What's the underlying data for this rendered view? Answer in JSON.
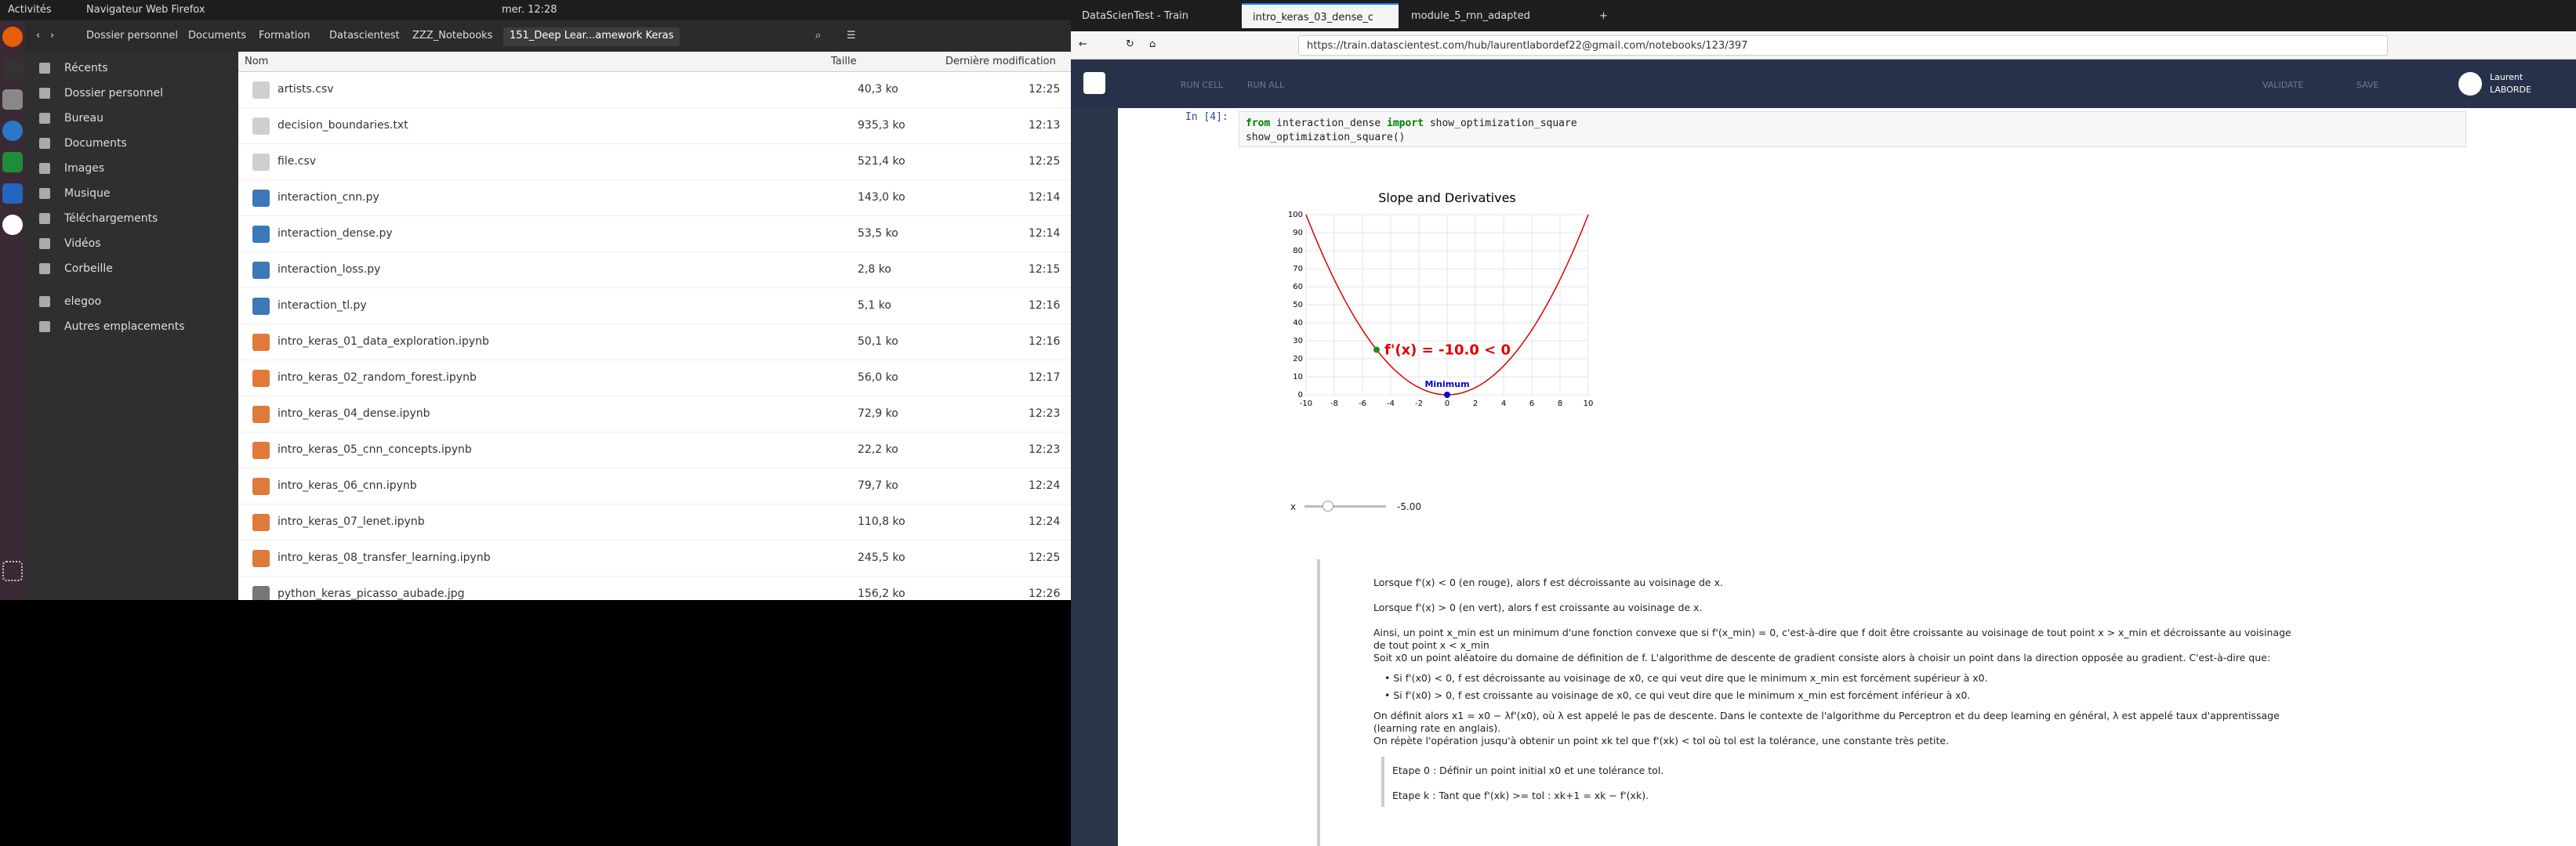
{
  "topbar": {
    "activities": "Activités",
    "app": "Navigateur Web Firefox",
    "clock": "mer. 12:28"
  },
  "nautilus": {
    "breadcrumbs": [
      "Dossier personnel",
      "Documents",
      "Formation",
      "Datascientest",
      "ZZZ_Notebooks",
      "151_Deep Lear...amework Keras"
    ],
    "sidebar": [
      "Récents",
      "Dossier personnel",
      "Bureau",
      "Documents",
      "Images",
      "Musique",
      "Téléchargements",
      "Vidéos",
      "Corbeille",
      "elegoo",
      "Autres emplacements"
    ],
    "columns": {
      "name": "Nom",
      "size": "Taille",
      "modified": "Dernière modification"
    },
    "files": [
      {
        "name": "artists.csv",
        "size": "40,3 ko",
        "time": "12:25",
        "kind": "text"
      },
      {
        "name": "decision_boundaries.txt",
        "size": "935,3 ko",
        "time": "12:13",
        "kind": "text"
      },
      {
        "name": "file.csv",
        "size": "521,4 ko",
        "time": "12:25",
        "kind": "text"
      },
      {
        "name": "interaction_cnn.py",
        "size": "143,0 ko",
        "time": "12:14",
        "kind": "python"
      },
      {
        "name": "interaction_dense.py",
        "size": "53,5 ko",
        "time": "12:14",
        "kind": "python"
      },
      {
        "name": "interaction_loss.py",
        "size": "2,8 ko",
        "time": "12:15",
        "kind": "python"
      },
      {
        "name": "interaction_tl.py",
        "size": "5,1 ko",
        "time": "12:16",
        "kind": "python"
      },
      {
        "name": "intro_keras_01_data_exploration.ipynb",
        "size": "50,1 ko",
        "time": "12:16",
        "kind": "notebook"
      },
      {
        "name": "intro_keras_02_random_forest.ipynb",
        "size": "56,0 ko",
        "time": "12:17",
        "kind": "notebook"
      },
      {
        "name": "intro_keras_04_dense.ipynb",
        "size": "72,9 ko",
        "time": "12:23",
        "kind": "notebook"
      },
      {
        "name": "intro_keras_05_cnn_concepts.ipynb",
        "size": "22,2 ko",
        "time": "12:23",
        "kind": "notebook"
      },
      {
        "name": "intro_keras_06_cnn.ipynb",
        "size": "79,7 ko",
        "time": "12:24",
        "kind": "notebook"
      },
      {
        "name": "intro_keras_07_lenet.ipynb",
        "size": "110,8 ko",
        "time": "12:24",
        "kind": "notebook"
      },
      {
        "name": "intro_keras_08_transfer_learning.ipynb",
        "size": "245,5 ko",
        "time": "12:25",
        "kind": "notebook"
      },
      {
        "name": "python_keras_picasso_aubade.jpg",
        "size": "156,2 ko",
        "time": "12:26",
        "kind": "image"
      }
    ]
  },
  "firefox": {
    "tabs": [
      "DataScienTest - Train",
      "intro_keras_03_dense_c",
      "module_5_rnn_adapted"
    ],
    "url": "https://train.datascientest.com/hub/laurentlabordef22@gmail.com/notebooks/123/397",
    "toolbar": [
      "RUN CELL",
      "RUN ALL",
      "VALIDATE",
      "SAVE"
    ],
    "user": [
      "Laurent",
      "LABORDE"
    ],
    "cell_prompt": "In [4]:",
    "code": {
      "line1_kw1": "from",
      "line1_mod": " interaction_dense ",
      "line1_kw2": "import",
      "line1_fn": " show_optimization_square",
      "line2": "show_optimization_square()"
    },
    "slider": {
      "label": "x",
      "value": "-5.00",
      "fraction": 0.25
    },
    "markdown": [
      "Lorsque f'(x) < 0 (en rouge), alors f est décroissante au voisinage de x.",
      "Lorsque f'(x) > 0 (en vert), alors f est croissante au voisinage de x.",
      "Ainsi, un point x_min est un minimum d'une fonction convexe que si f'(x_min) = 0, c'est-à-dire que f doit être croissante au voisinage de tout point x > x_min et décroissante au voisinage de tout point x < x_min",
      "Soit x0 un point aléatoire du domaine de définition de f. L'algorithme de descente de gradient consiste alors à choisir un point dans la direction opposée au gradient. C'est-à-dire que:",
      "• Si f'(x0) < 0, f est décroissante au voisinage de x0, ce qui veut dire que le minimum x_min est forcément supérieur à x0.",
      "• Si f'(x0) > 0, f est croissante au voisinage de x0, ce qui veut dire que le minimum x_min est forcément inférieur à x0.",
      "On définit alors x1 = x0 − λf'(x0), où λ est appelé le pas de descente. Dans le contexte de l'algorithme du Perceptron et du deep learning en général, λ est appelé taux d'apprentissage (learning rate en anglais).",
      "On répète l'opération jusqu'à obtenir un point xk tel que f'(xk) < tol où tol est la tolérance, une constante très petite.",
      "Etape 0 : Définir un point initial x0 et une tolérance tol.",
      "Etape k : Tant que f'(xk) >= tol : xk+1 = xk − f'(xk)."
    ]
  },
  "chart_data": {
    "type": "line",
    "title": "Slope and Derivatives",
    "xlim": [
      -10,
      10
    ],
    "ylim": [
      0,
      100
    ],
    "xticks": [
      -10,
      -8,
      -6,
      -4,
      -2,
      0,
      2,
      4,
      6,
      8,
      10
    ],
    "yticks": [
      0,
      10,
      20,
      30,
      40,
      50,
      60,
      70,
      80,
      90,
      100
    ],
    "function": "x^2",
    "point": {
      "x": -5,
      "y": 25,
      "color": "#228b22"
    },
    "annotation": "f'(x) = -10.0 < 0",
    "minimum": {
      "x": 0,
      "y": 0,
      "label": "Minimum"
    },
    "colors": {
      "curve": "#dd0000",
      "point": "#228b22",
      "minimum": "#0000cc",
      "annotation": "#dd0000"
    }
  }
}
